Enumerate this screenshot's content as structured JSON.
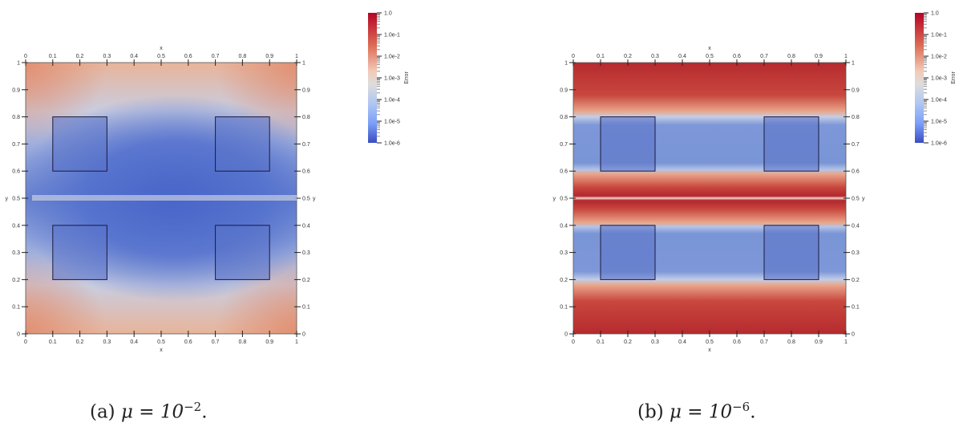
{
  "chart_data": [
    {
      "type": "heatmap",
      "panel": "a",
      "caption_prefix": "(a) ",
      "caption_mu": "μ = 10",
      "caption_exp": "−2",
      "caption_suffix": ".",
      "xlabel": "x",
      "ylabel": "y",
      "xlim": [
        0,
        1
      ],
      "ylim": [
        0,
        1
      ],
      "xticks": [
        "0",
        "0.1",
        "0.2",
        "0.3",
        "0.4",
        "0.5",
        "0.6",
        "0.7",
        "0.8",
        "0.9",
        "1"
      ],
      "yticks": [
        "0",
        "0.1",
        "0.2",
        "0.3",
        "0.4",
        "0.5",
        "0.6",
        "0.7",
        "0.8",
        "0.9",
        "1"
      ],
      "obstacles": [
        [
          0.1,
          0.6,
          0.3,
          0.8
        ],
        [
          0.7,
          0.6,
          0.9,
          0.8
        ],
        [
          0.1,
          0.2,
          0.3,
          0.4
        ],
        [
          0.7,
          0.2,
          0.9,
          0.4
        ]
      ],
      "colorbar": {
        "label": "Error",
        "scale": "log",
        "ticks": [
          "1.0",
          "1.0e-1",
          "1.0e-2",
          "1.0e-3",
          "1.0e-4",
          "1.0e-5",
          "1.0e-6"
        ],
        "colormap": "coolwarm",
        "low_color": "#3b4cc0",
        "high_color": "#b40426"
      }
    },
    {
      "type": "heatmap",
      "panel": "b",
      "caption_prefix": "(b) ",
      "caption_mu": "μ = 10",
      "caption_exp": "−6",
      "caption_suffix": ".",
      "xlabel": "x",
      "ylabel": "y",
      "xlim": [
        0,
        1
      ],
      "ylim": [
        0,
        1
      ],
      "xticks": [
        "0",
        "0.1",
        "0.2",
        "0.3",
        "0.4",
        "0.5",
        "0.6",
        "0.7",
        "0.8",
        "0.9",
        "1"
      ],
      "yticks": [
        "0",
        "0.1",
        "0.2",
        "0.3",
        "0.4",
        "0.5",
        "0.6",
        "0.7",
        "0.8",
        "0.9",
        "1"
      ],
      "obstacles": [
        [
          0.1,
          0.6,
          0.3,
          0.8
        ],
        [
          0.7,
          0.6,
          0.9,
          0.8
        ],
        [
          0.1,
          0.2,
          0.3,
          0.4
        ],
        [
          0.7,
          0.2,
          0.9,
          0.4
        ]
      ],
      "colorbar": {
        "label": "Error",
        "scale": "log",
        "ticks": [
          "1.0",
          "1.0e-1",
          "1.0e-2",
          "1.0e-3",
          "1.0e-4",
          "1.0e-5",
          "1.0e-6"
        ],
        "colormap": "coolwarm",
        "low_color": "#3b4cc0",
        "high_color": "#b40426"
      }
    }
  ]
}
